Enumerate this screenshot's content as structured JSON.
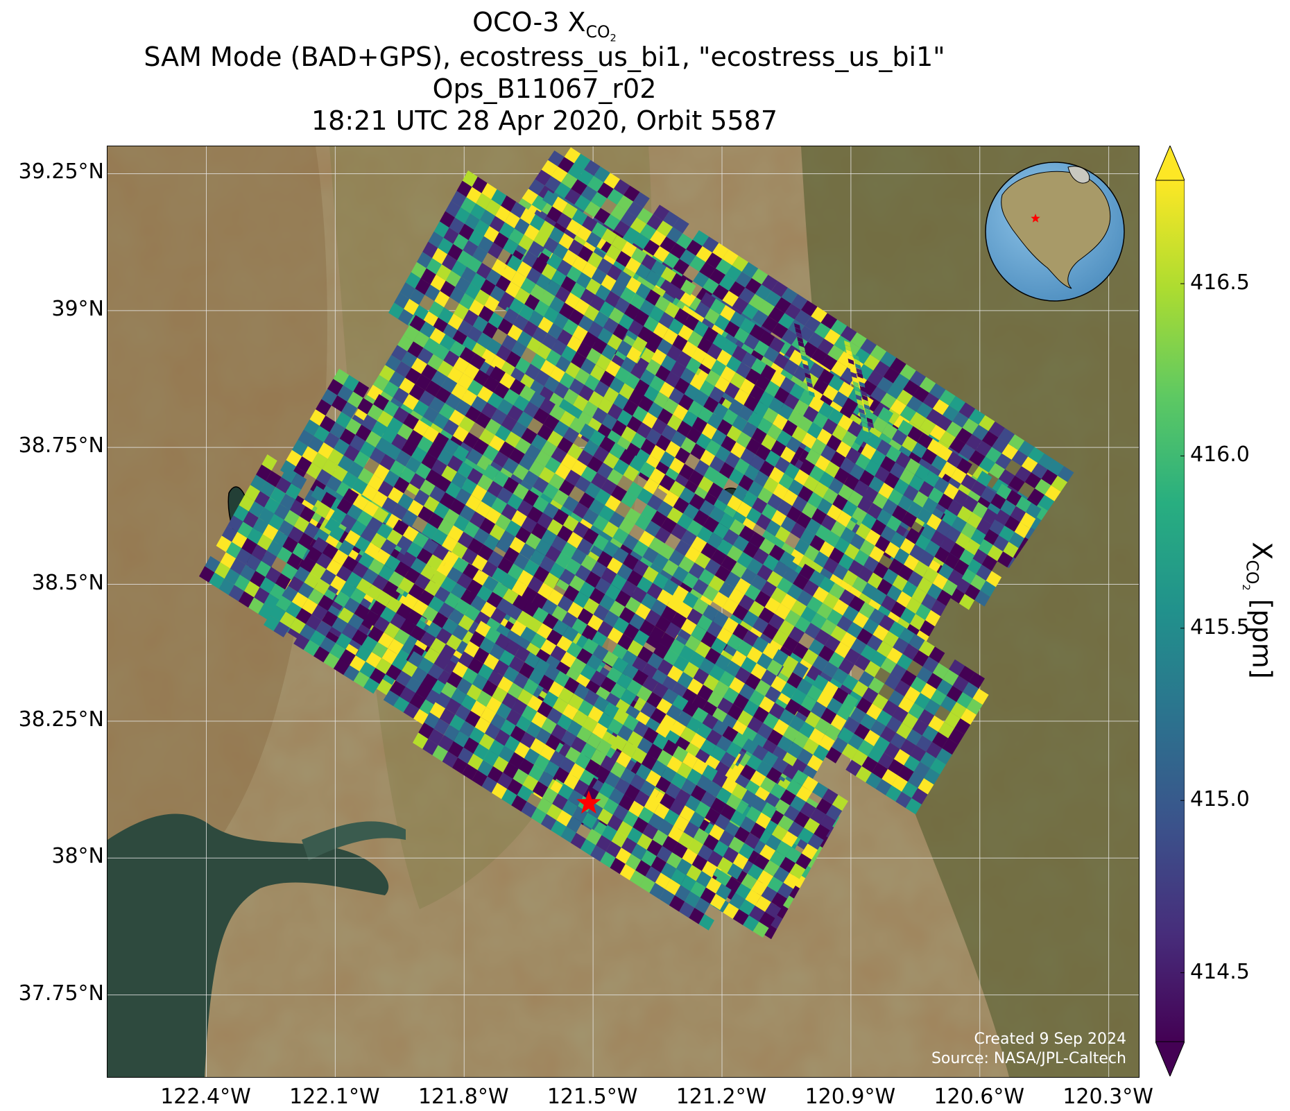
{
  "title": {
    "line1_main": "OCO-3 X",
    "line1_sub": "CO",
    "line1_subsub": "2",
    "line2": "SAM Mode (BAD+GPS), ecostress_us_bi1, \"ecostress_us_bi1\"",
    "line3": "Ops_B11067_r02",
    "line4": "18:21 UTC 28 Apr 2020, Orbit 5587"
  },
  "map": {
    "lon_range": [
      -122.63,
      -120.23
    ],
    "lat_range": [
      37.6,
      39.3
    ],
    "lat_ticks": [
      {
        "value": 39.25,
        "label": "39.25°N"
      },
      {
        "value": 39.0,
        "label": "39°N"
      },
      {
        "value": 38.75,
        "label": "38.75°N"
      },
      {
        "value": 38.5,
        "label": "38.5°N"
      },
      {
        "value": 38.25,
        "label": "38.25°N"
      },
      {
        "value": 38.0,
        "label": "38°N"
      },
      {
        "value": 37.75,
        "label": "37.75°N"
      }
    ],
    "lon_ticks": [
      {
        "value": -122.4,
        "label": "122.4°W"
      },
      {
        "value": -122.1,
        "label": "122.1°W"
      },
      {
        "value": -121.8,
        "label": "121.8°W"
      },
      {
        "value": -121.5,
        "label": "121.5°W"
      },
      {
        "value": -121.2,
        "label": "121.2°W"
      },
      {
        "value": -120.9,
        "label": "120.9°W"
      },
      {
        "value": -120.6,
        "label": "120.6°W"
      },
      {
        "value": -120.3,
        "label": "120.3°W"
      }
    ],
    "target_marker": {
      "lon": -121.51,
      "lat": 38.1,
      "symbol": "star",
      "color": "#ff0000"
    },
    "grid": true,
    "basemap": "satellite imagery",
    "inset_globe": {
      "position": "top-right",
      "marker_color": "#ff0000"
    },
    "credits": {
      "created": "Created 9 Sep 2024",
      "source": "Source: NASA/JPL-Caltech"
    }
  },
  "colorbar": {
    "colormap": "viridis",
    "range": [
      414.3,
      416.8
    ],
    "extend": "both",
    "ticks": [
      {
        "value": 416.5,
        "label": "416.5"
      },
      {
        "value": 416.0,
        "label": "416.0"
      },
      {
        "value": 415.5,
        "label": "415.5"
      },
      {
        "value": 415.0,
        "label": "415.0"
      },
      {
        "value": 414.5,
        "label": "414.5"
      }
    ],
    "label_main": "X",
    "label_sub": "CO",
    "label_subsub": "2",
    "label_unit": " [ppm]"
  }
}
